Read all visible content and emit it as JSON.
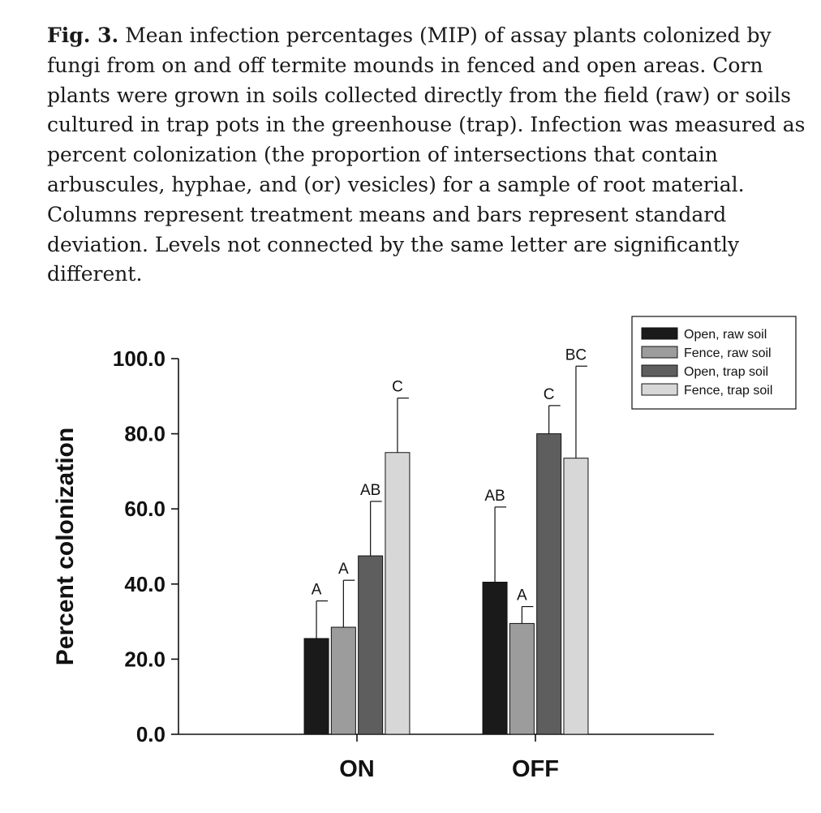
{
  "caption": {
    "fig_label": "Fig. 3.",
    "text": "Mean infection percentages (MIP) of assay plants colonized by fungi from on and off termite mounds in fenced and open areas. Corn plants were grown in soils collected directly from the field (raw) or soils cultured in trap pots in the greenhouse (trap). Infection was measured as percent colonization (the proportion of intersections that contain arbuscules, hyphae, and (or) vesicles) for a sample of root material. Columns represent treatment means and bars represent standard deviation. Levels not connected by the same letter are significantly different."
  },
  "chart_data": {
    "type": "bar",
    "title": "",
    "xlabel": "",
    "ylabel": "Percent colonization",
    "ylim": [
      0,
      100
    ],
    "yticks": [
      "0.0",
      "20.0",
      "40.0",
      "60.0",
      "80.0",
      "100.0"
    ],
    "categories": [
      "ON",
      "OFF"
    ],
    "grid": false,
    "legend_position": "top-right",
    "series": [
      {
        "name": "Open, raw soil",
        "color": "#1a1a1a",
        "values": [
          25.5,
          40.5
        ],
        "sd": [
          10.0,
          20.0
        ],
        "letters": [
          "A",
          "AB"
        ]
      },
      {
        "name": "Fence, raw soil",
        "color": "#9c9c9c",
        "values": [
          28.5,
          29.5
        ],
        "sd": [
          12.5,
          4.5
        ],
        "letters": [
          "A",
          "A"
        ]
      },
      {
        "name": "Open, trap soil",
        "color": "#5e5e5e",
        "values": [
          47.5,
          80.0
        ],
        "sd": [
          14.5,
          7.5
        ],
        "letters": [
          "AB",
          "C"
        ]
      },
      {
        "name": "Fence, trap soil",
        "color": "#d7d7d7",
        "values": [
          75.0,
          73.5
        ],
        "sd": [
          14.5,
          24.5
        ],
        "letters": [
          "C",
          "BC"
        ]
      }
    ]
  }
}
